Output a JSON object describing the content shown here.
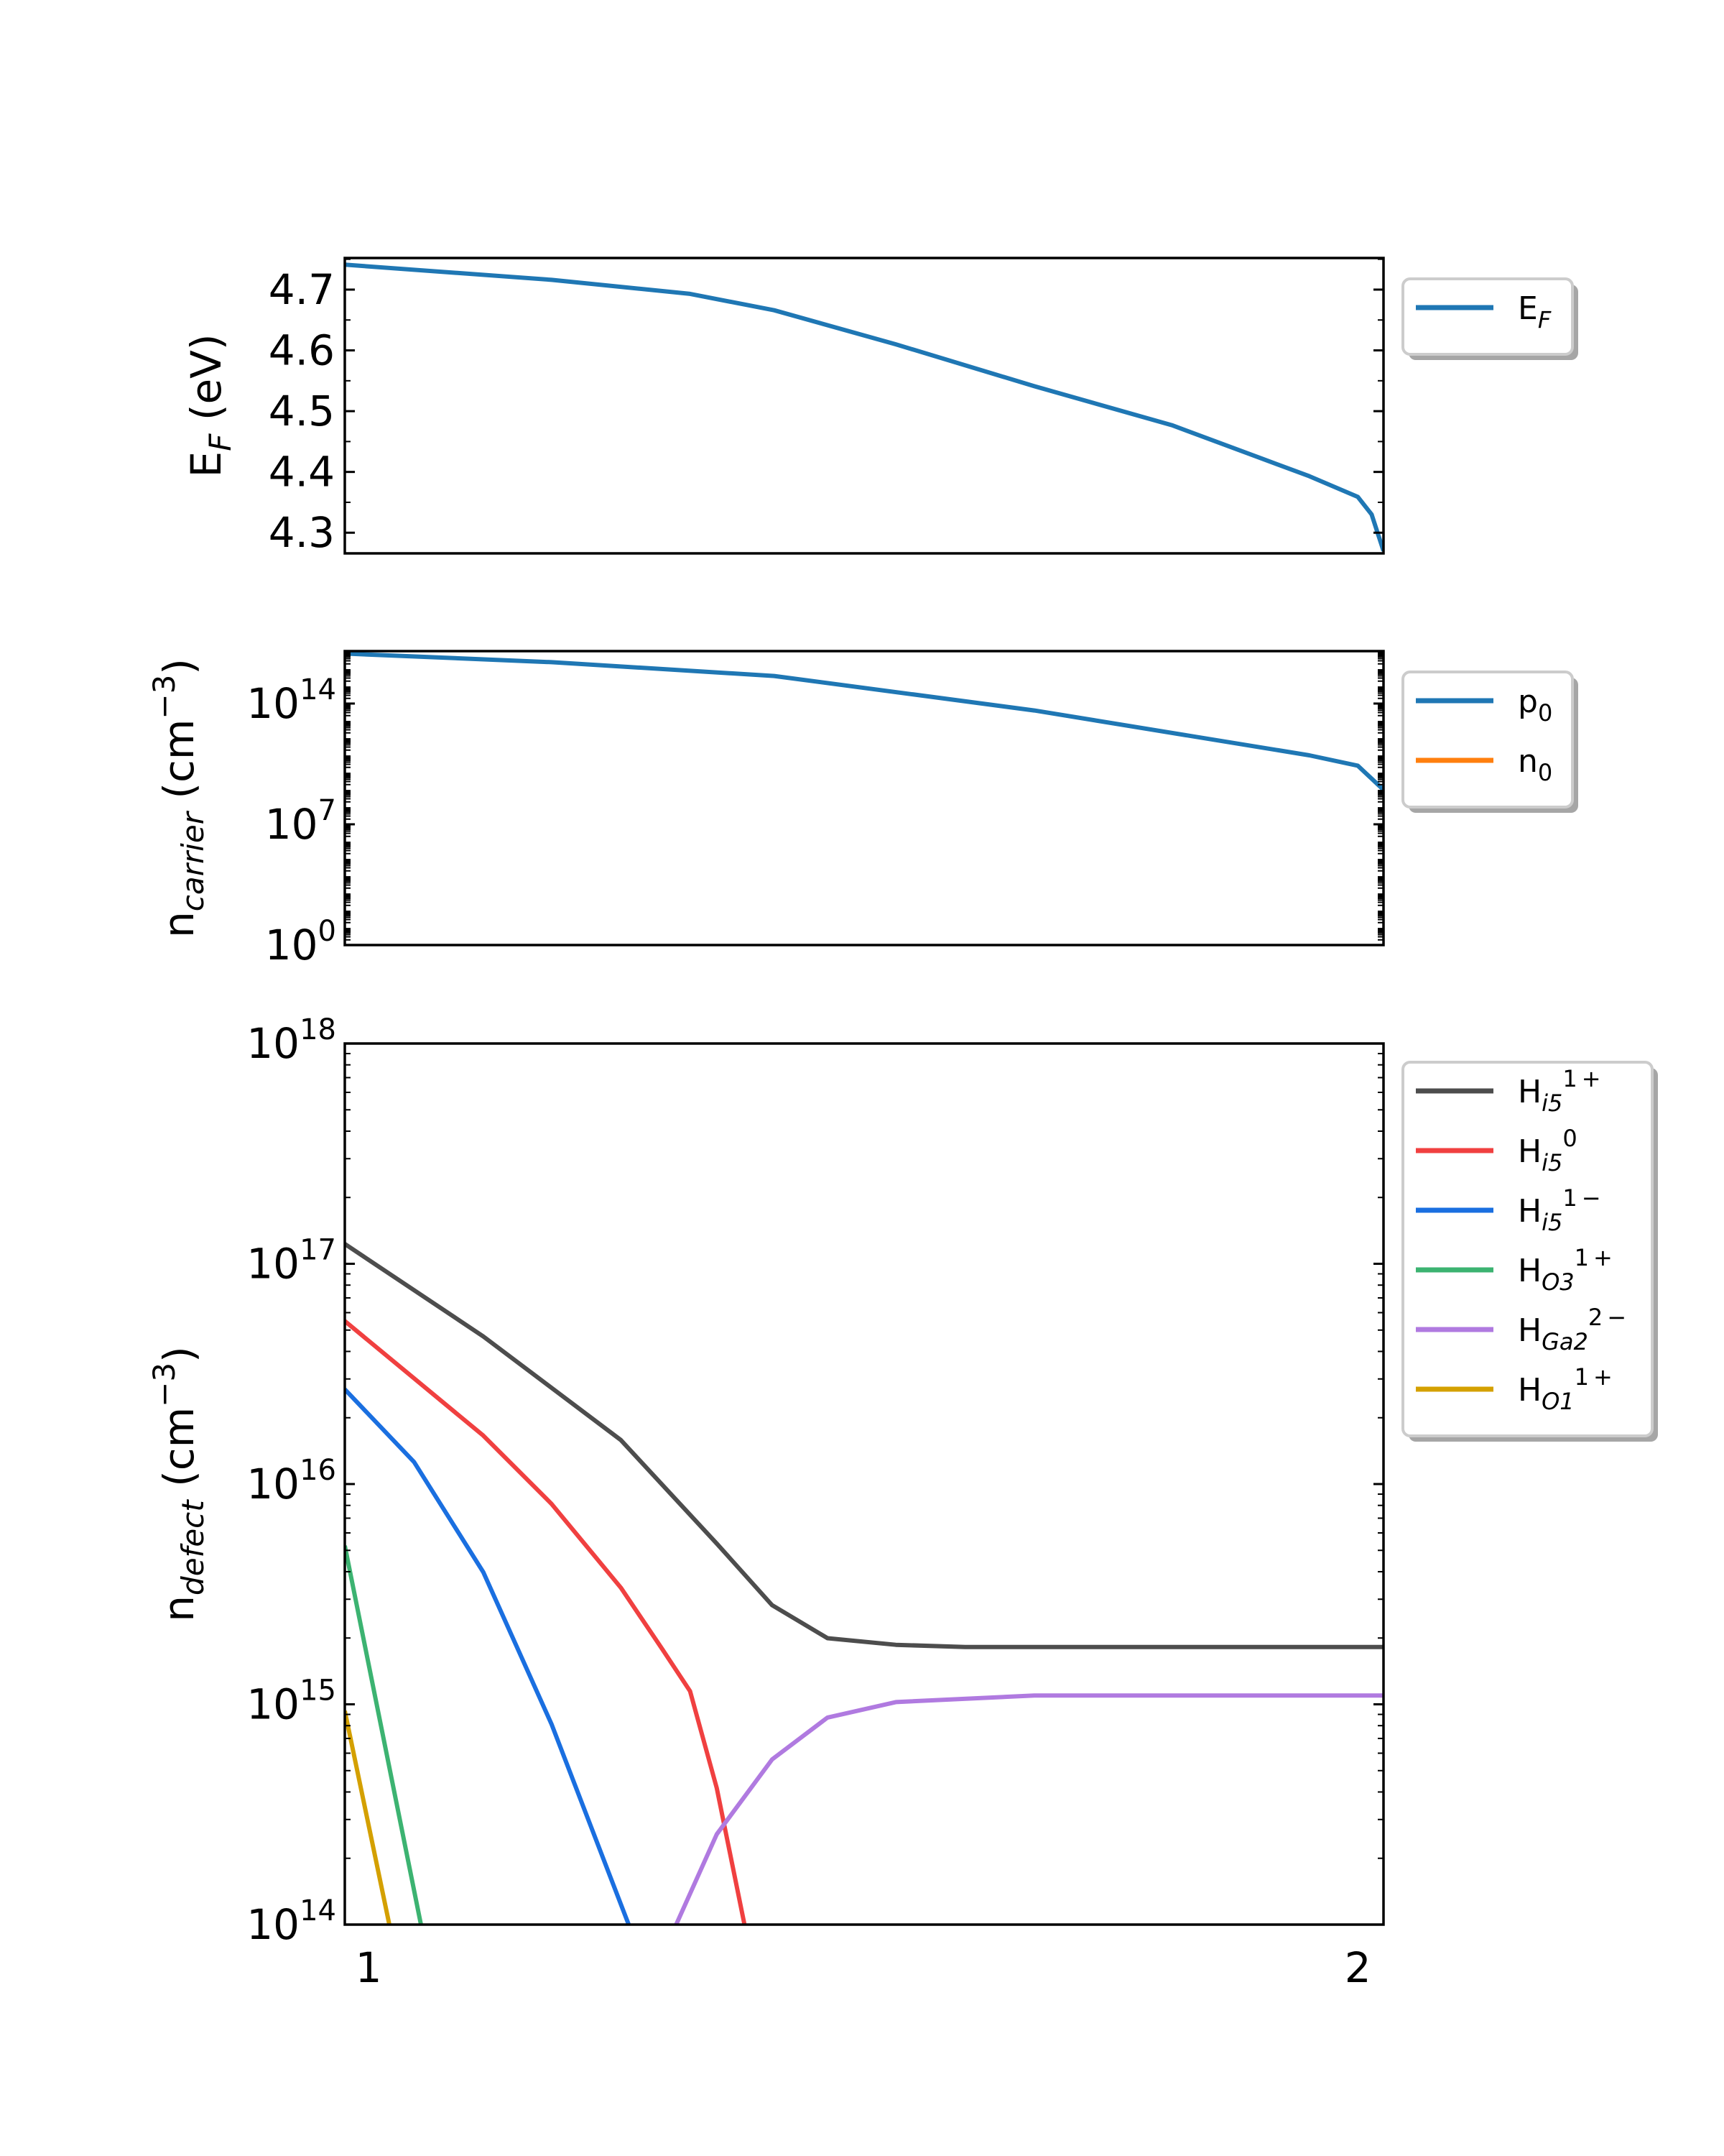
{
  "chart_data": [
    {
      "type": "line",
      "ylabel": {
        "base": "E",
        "sub": "F",
        "rest": " (eV)"
      },
      "yscale": "linear",
      "ylim": [
        4.266,
        4.752
      ],
      "xlim": [
        0.976,
        2.026
      ],
      "yticks": [
        {
          "value": 4.3,
          "label": "4.3"
        },
        {
          "value": 4.4,
          "label": "4.4"
        },
        {
          "value": 4.5,
          "label": "4.5"
        },
        {
          "value": 4.6,
          "label": "4.6"
        },
        {
          "value": 4.7,
          "label": "4.7"
        }
      ],
      "minor_step": 0.05,
      "legend_placement": "outside upper right",
      "series": [
        {
          "name": {
            "base": "E",
            "sub": "F",
            "sup": ""
          },
          "color": "#1f77b4",
          "x": [
            0.976,
            1.185,
            1.325,
            1.41,
            1.533,
            1.673,
            1.812,
            1.951,
            2.0,
            2.014,
            2.02,
            2.026
          ],
          "y": [
            4.741,
            4.716,
            4.693,
            4.666,
            4.61,
            4.541,
            4.477,
            4.393,
            4.359,
            4.33,
            4.3,
            4.27
          ]
        }
      ]
    },
    {
      "type": "line",
      "ylabel": {
        "base": "n",
        "sub": "carrier",
        "rest": " (cm",
        "sup": "−3",
        "end": ")"
      },
      "yscale": "log",
      "ylim": [
        0,
        17.04
      ],
      "xlim": [
        0.976,
        2.026
      ],
      "yticks": [
        {
          "value": 0,
          "label": "10",
          "sup": "0"
        },
        {
          "value": 7,
          "label": "10",
          "sup": "7"
        },
        {
          "value": 14,
          "label": "10",
          "sup": "14"
        }
      ],
      "legend_placement": "outside upper right",
      "series": [
        {
          "name": {
            "base": "p",
            "sub": "0",
            "sup": ""
          },
          "color": "#1f77b4",
          "x": [
            0.976,
            1.185,
            1.41,
            1.673,
            1.951,
            2.0,
            2.026
          ],
          "y_log10": [
            16.9,
            16.4,
            15.6,
            13.6,
            11.0,
            10.4,
            9.0
          ]
        },
        {
          "name": {
            "base": "n",
            "sub": "0",
            "sup": ""
          },
          "color": "#ff7f0e",
          "x": [],
          "y_log10": []
        }
      ]
    },
    {
      "type": "line",
      "ylabel": {
        "base": "n",
        "sub": "defect",
        "rest": " (cm",
        "sup": "−3",
        "end": ")"
      },
      "yscale": "log",
      "ylim": [
        14,
        18
      ],
      "xlim": [
        0.976,
        2.026
      ],
      "xticks": [
        {
          "value": 1,
          "label": "1"
        },
        {
          "value": 2,
          "label": "2"
        }
      ],
      "yticks": [
        {
          "value": 14,
          "label": "10",
          "sup": "14"
        },
        {
          "value": 15,
          "label": "10",
          "sup": "15"
        },
        {
          "value": 16,
          "label": "10",
          "sup": "16"
        },
        {
          "value": 17,
          "label": "10",
          "sup": "17"
        },
        {
          "value": 18,
          "label": "10",
          "sup": "18"
        }
      ],
      "legend_placement": "outside upper right",
      "series": [
        {
          "name": {
            "base": "H",
            "sub": "i5",
            "sup": "1+"
          },
          "color": "#4d4d4d",
          "x": [
            0.976,
            1.116,
            1.255,
            1.352,
            1.408,
            1.464,
            1.533,
            1.603,
            2.026
          ],
          "y_log10": [
            17.09,
            16.67,
            16.2,
            15.73,
            15.45,
            15.3,
            15.27,
            15.26,
            15.26
          ]
        },
        {
          "name": {
            "base": "H",
            "sub": "i5",
            "sup": "0"
          },
          "color": "#f04040",
          "x": [
            0.976,
            1.116,
            1.185,
            1.255,
            1.297,
            1.325,
            1.352,
            1.38
          ],
          "y_log10": [
            16.74,
            16.22,
            15.91,
            15.53,
            15.25,
            15.06,
            14.62,
            14.0
          ]
        },
        {
          "name": {
            "base": "H",
            "sub": "i5",
            "sup": "1−"
          },
          "color": "#1a6fe0",
          "x": [
            0.976,
            1.046,
            1.116,
            1.185,
            1.263
          ],
          "y_log10": [
            16.43,
            16.1,
            15.6,
            14.91,
            14.0
          ]
        },
        {
          "name": {
            "base": "H",
            "sub": "O3",
            "sup": "1+"
          },
          "color": "#3cb371",
          "x": [
            0.976,
            1.053
          ],
          "y_log10": [
            15.72,
            14.0
          ]
        },
        {
          "name": {
            "base": "H",
            "sub": "Ga2",
            "sup": "2−"
          },
          "color": "#b07ae0",
          "x": [
            1.311,
            1.352,
            1.408,
            1.464,
            1.533,
            1.673,
            2.026
          ],
          "y_log10": [
            14.0,
            14.41,
            14.75,
            14.94,
            15.01,
            15.04,
            15.04
          ]
        },
        {
          "name": {
            "base": "H",
            "sub": "O1",
            "sup": "1+"
          },
          "color": "#d4a000",
          "x": [
            0.976,
            1.021
          ],
          "y_log10": [
            14.97,
            14.0
          ]
        }
      ]
    }
  ]
}
